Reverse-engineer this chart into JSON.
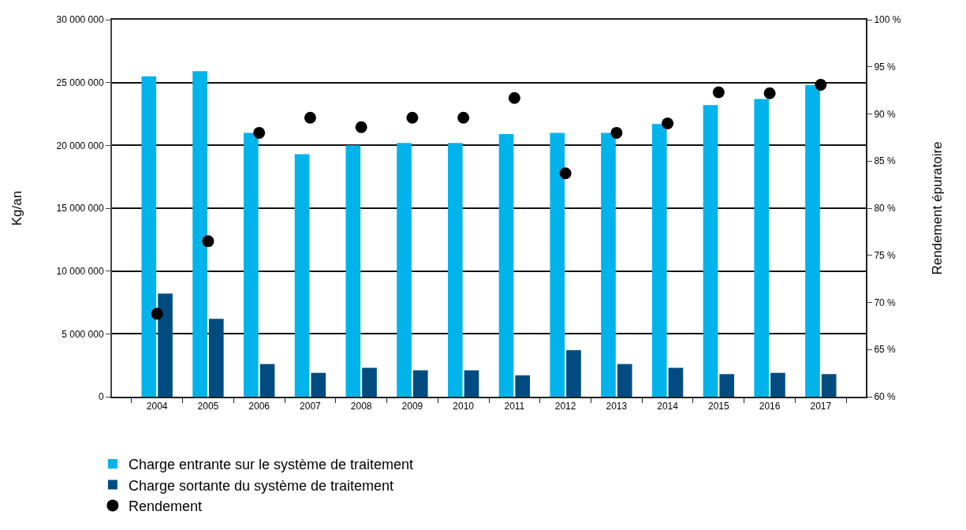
{
  "chart_data": {
    "type": "bar",
    "ylabel": "Kg/an",
    "y2label": "Rendement épuratoire",
    "categories": [
      "2004",
      "2005",
      "2006",
      "2007",
      "2008",
      "2009",
      "2010",
      "2011",
      "2012",
      "2013",
      "2014",
      "2015",
      "2016",
      "2017"
    ],
    "series": [
      {
        "name": "Charge entrante sur le système de traitement",
        "color": "#00b3eb",
        "values": [
          25500000,
          25900000,
          21000000,
          19300000,
          20000000,
          20200000,
          20200000,
          20900000,
          21000000,
          21000000,
          21700000,
          23200000,
          23700000,
          24800000
        ]
      },
      {
        "name": "Charge sortante du système de traitement",
        "color": "#004c80",
        "values": [
          8200000,
          6200000,
          2600000,
          1900000,
          2300000,
          2100000,
          2100000,
          1700000,
          3700000,
          2600000,
          2300000,
          1800000,
          1900000,
          1800000
        ]
      },
      {
        "name": "Rendement",
        "type": "scatter",
        "axis": "y2",
        "marker": "circle",
        "color": "#000000",
        "values": [
          68.8,
          76.5,
          88.0,
          89.6,
          88.6,
          89.6,
          89.6,
          91.7,
          83.7,
          88.0,
          89.0,
          92.3,
          92.2,
          93.1
        ]
      }
    ],
    "ylim": [
      0,
      30000000
    ],
    "yticks": [
      {
        "value": 0,
        "label": "0"
      },
      {
        "value": 5000000,
        "label": "5 000 000"
      },
      {
        "value": 10000000,
        "label": "10 000 000"
      },
      {
        "value": 15000000,
        "label": "15 000 000"
      },
      {
        "value": 20000000,
        "label": "20 000 000"
      },
      {
        "value": 25000000,
        "label": "25 000 000"
      },
      {
        "value": 30000000,
        "label": "30 000 000"
      }
    ],
    "y2lim": [
      60,
      100
    ],
    "y2ticks": [
      {
        "value": 60,
        "label": "60 %"
      },
      {
        "value": 65,
        "label": "65 %"
      },
      {
        "value": 70,
        "label": "70 %"
      },
      {
        "value": 75,
        "label": "75 %"
      },
      {
        "value": 80,
        "label": "80 %"
      },
      {
        "value": 85,
        "label": "85 %"
      },
      {
        "value": 90,
        "label": "90 %"
      },
      {
        "value": 95,
        "label": "95 %"
      },
      {
        "value": 100,
        "label": "100 %"
      }
    ],
    "grid": "y",
    "legend": "bottom left"
  }
}
